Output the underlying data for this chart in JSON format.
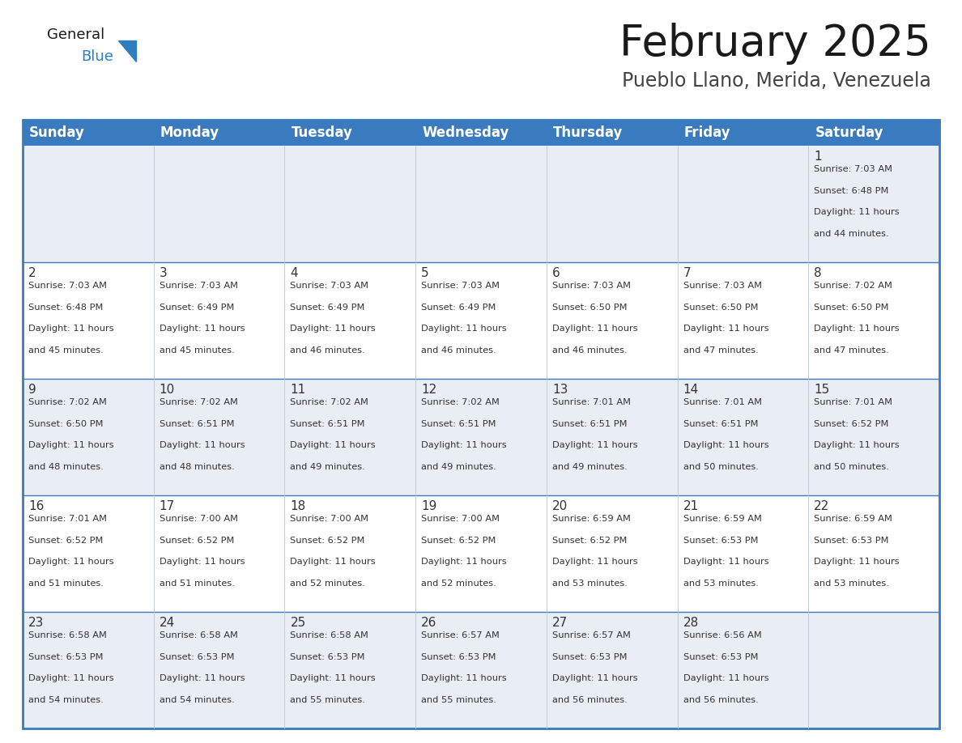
{
  "title": "February 2025",
  "subtitle": "Pueblo Llano, Merida, Venezuela",
  "header_bg": "#3a7abf",
  "header_text": "#ffffff",
  "row0_bg": "#e8eef4",
  "row1_bg": "#ffffff",
  "row2_bg": "#e8eef4",
  "row3_bg": "#ffffff",
  "row4_bg": "#e8eef4",
  "separator_color": "#3a7abf",
  "cell_line_color": "#c0c8d0",
  "day_headers": [
    "Sunday",
    "Monday",
    "Tuesday",
    "Wednesday",
    "Thursday",
    "Friday",
    "Saturday"
  ],
  "calendar_data": [
    [
      null,
      null,
      null,
      null,
      null,
      null,
      {
        "day": "1",
        "sunrise": "7:03 AM",
        "sunset": "6:48 PM",
        "daylight": "11 hours",
        "minutes": "and 44 minutes."
      }
    ],
    [
      {
        "day": "2",
        "sunrise": "7:03 AM",
        "sunset": "6:48 PM",
        "daylight": "11 hours",
        "minutes": "and 45 minutes."
      },
      {
        "day": "3",
        "sunrise": "7:03 AM",
        "sunset": "6:49 PM",
        "daylight": "11 hours",
        "minutes": "and 45 minutes."
      },
      {
        "day": "4",
        "sunrise": "7:03 AM",
        "sunset": "6:49 PM",
        "daylight": "11 hours",
        "minutes": "and 46 minutes."
      },
      {
        "day": "5",
        "sunrise": "7:03 AM",
        "sunset": "6:49 PM",
        "daylight": "11 hours",
        "minutes": "and 46 minutes."
      },
      {
        "day": "6",
        "sunrise": "7:03 AM",
        "sunset": "6:50 PM",
        "daylight": "11 hours",
        "minutes": "and 46 minutes."
      },
      {
        "day": "7",
        "sunrise": "7:03 AM",
        "sunset": "6:50 PM",
        "daylight": "11 hours",
        "minutes": "and 47 minutes."
      },
      {
        "day": "8",
        "sunrise": "7:02 AM",
        "sunset": "6:50 PM",
        "daylight": "11 hours",
        "minutes": "and 47 minutes."
      }
    ],
    [
      {
        "day": "9",
        "sunrise": "7:02 AM",
        "sunset": "6:50 PM",
        "daylight": "11 hours",
        "minutes": "and 48 minutes."
      },
      {
        "day": "10",
        "sunrise": "7:02 AM",
        "sunset": "6:51 PM",
        "daylight": "11 hours",
        "minutes": "and 48 minutes."
      },
      {
        "day": "11",
        "sunrise": "7:02 AM",
        "sunset": "6:51 PM",
        "daylight": "11 hours",
        "minutes": "and 49 minutes."
      },
      {
        "day": "12",
        "sunrise": "7:02 AM",
        "sunset": "6:51 PM",
        "daylight": "11 hours",
        "minutes": "and 49 minutes."
      },
      {
        "day": "13",
        "sunrise": "7:01 AM",
        "sunset": "6:51 PM",
        "daylight": "11 hours",
        "minutes": "and 49 minutes."
      },
      {
        "day": "14",
        "sunrise": "7:01 AM",
        "sunset": "6:51 PM",
        "daylight": "11 hours",
        "minutes": "and 50 minutes."
      },
      {
        "day": "15",
        "sunrise": "7:01 AM",
        "sunset": "6:52 PM",
        "daylight": "11 hours",
        "minutes": "and 50 minutes."
      }
    ],
    [
      {
        "day": "16",
        "sunrise": "7:01 AM",
        "sunset": "6:52 PM",
        "daylight": "11 hours",
        "minutes": "and 51 minutes."
      },
      {
        "day": "17",
        "sunrise": "7:00 AM",
        "sunset": "6:52 PM",
        "daylight": "11 hours",
        "minutes": "and 51 minutes."
      },
      {
        "day": "18",
        "sunrise": "7:00 AM",
        "sunset": "6:52 PM",
        "daylight": "11 hours",
        "minutes": "and 52 minutes."
      },
      {
        "day": "19",
        "sunrise": "7:00 AM",
        "sunset": "6:52 PM",
        "daylight": "11 hours",
        "minutes": "and 52 minutes."
      },
      {
        "day": "20",
        "sunrise": "6:59 AM",
        "sunset": "6:52 PM",
        "daylight": "11 hours",
        "minutes": "and 53 minutes."
      },
      {
        "day": "21",
        "sunrise": "6:59 AM",
        "sunset": "6:53 PM",
        "daylight": "11 hours",
        "minutes": "and 53 minutes."
      },
      {
        "day": "22",
        "sunrise": "6:59 AM",
        "sunset": "6:53 PM",
        "daylight": "11 hours",
        "minutes": "and 53 minutes."
      }
    ],
    [
      {
        "day": "23",
        "sunrise": "6:58 AM",
        "sunset": "6:53 PM",
        "daylight": "11 hours",
        "minutes": "and 54 minutes."
      },
      {
        "day": "24",
        "sunrise": "6:58 AM",
        "sunset": "6:53 PM",
        "daylight": "11 hours",
        "minutes": "and 54 minutes."
      },
      {
        "day": "25",
        "sunrise": "6:58 AM",
        "sunset": "6:53 PM",
        "daylight": "11 hours",
        "minutes": "and 55 minutes."
      },
      {
        "day": "26",
        "sunrise": "6:57 AM",
        "sunset": "6:53 PM",
        "daylight": "11 hours",
        "minutes": "and 55 minutes."
      },
      {
        "day": "27",
        "sunrise": "6:57 AM",
        "sunset": "6:53 PM",
        "daylight": "11 hours",
        "minutes": "and 56 minutes."
      },
      {
        "day": "28",
        "sunrise": "6:56 AM",
        "sunset": "6:53 PM",
        "daylight": "11 hours",
        "minutes": "and 56 minutes."
      },
      null
    ]
  ],
  "title_fontsize": 38,
  "subtitle_fontsize": 17,
  "header_fontsize": 12,
  "day_number_fontsize": 11,
  "cell_text_fontsize": 8.2,
  "logo_general_fontsize": 13,
  "logo_blue_fontsize": 13
}
